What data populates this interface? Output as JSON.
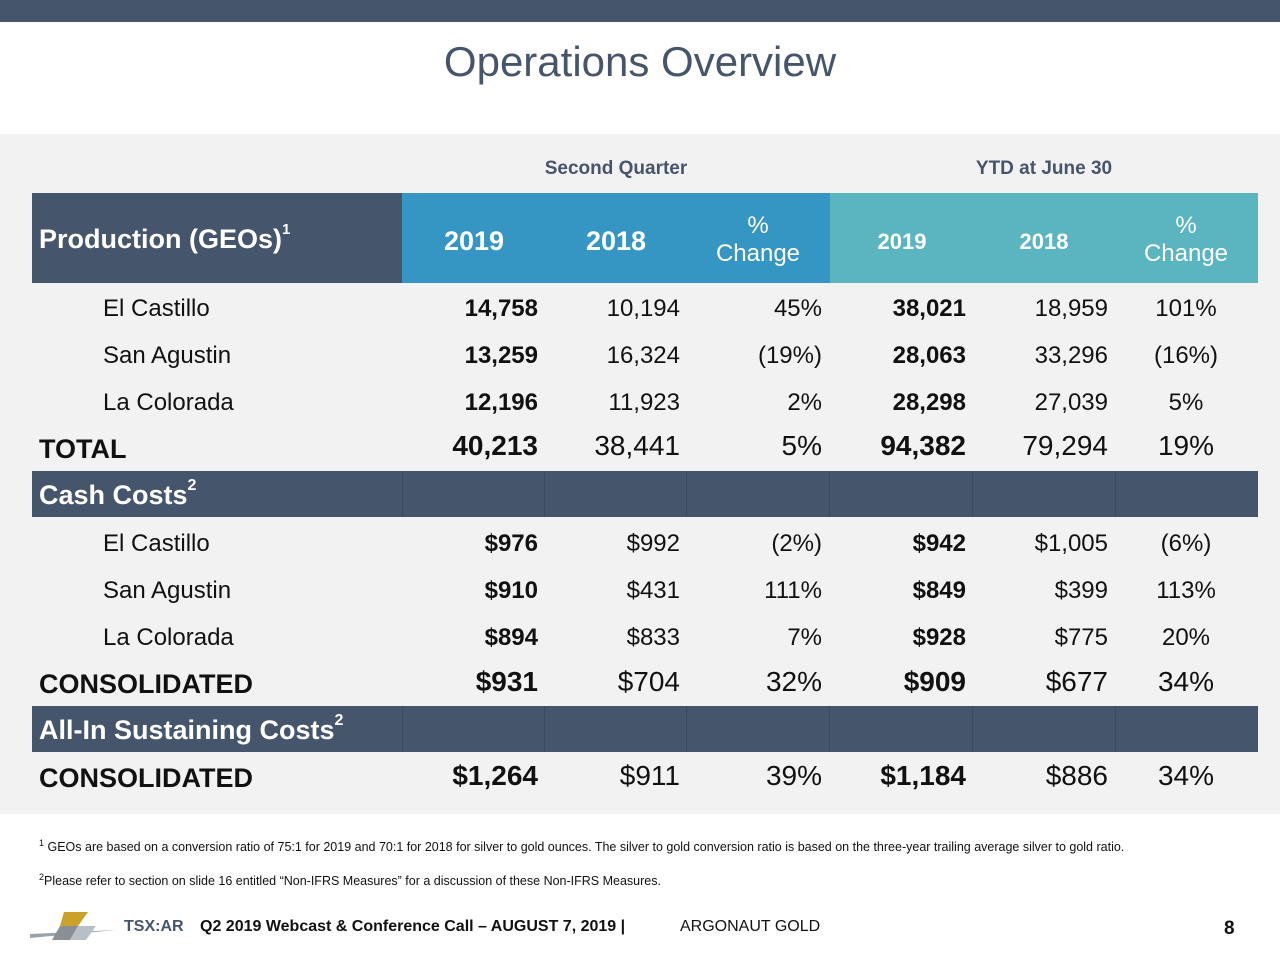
{
  "page": {
    "title": "Operations Overview"
  },
  "column_groups": {
    "second_quarter": "Second Quarter",
    "ytd": "YTD at June 30"
  },
  "header": {
    "production_label": "Production (GEOs)",
    "production_sup": "1",
    "q_2019": "2019",
    "q_2018": "2018",
    "q_pct_symbol": "%",
    "q_pct_word": "Change",
    "y_2019": "2019",
    "y_2018": "2018",
    "y_pct_symbol": "%",
    "y_pct_word": "Change"
  },
  "production_rows": [
    {
      "name": "El Castillo",
      "q2019": "14,758",
      "q2018": "10,194",
      "qchg": "45%",
      "y2019": "38,021",
      "y2018": "18,959",
      "ychg": "101%"
    },
    {
      "name": "San Agustin",
      "q2019": "13,259",
      "q2018": "16,324",
      "qchg": "(19%)",
      "y2019": "28,063",
      "y2018": "33,296",
      "ychg": "(16%)"
    },
    {
      "name": "La Colorada",
      "q2019": "12,196",
      "q2018": "11,923",
      "qchg": "2%",
      "y2019": "28,298",
      "y2018": "27,039",
      "ychg": "5%"
    }
  ],
  "production_total": {
    "name": "TOTAL",
    "q2019": "40,213",
    "q2018": "38,441",
    "qchg": "5%",
    "y2019": "94,382",
    "y2018": "79,294",
    "ychg": "19%"
  },
  "cash_costs": {
    "label": "Cash Costs",
    "sup": "2",
    "rows": [
      {
        "name": "El Castillo",
        "q2019": "$976",
        "q2018": "$992",
        "qchg": "(2%)",
        "y2019": "$942",
        "y2018": "$1,005",
        "ychg": "(6%)"
      },
      {
        "name": "San Agustin",
        "q2019": "$910",
        "q2018": "$431",
        "qchg": "111%",
        "y2019": "$849",
        "y2018": "$399",
        "ychg": "113%"
      },
      {
        "name": "La Colorada",
        "q2019": "$894",
        "q2018": "$833",
        "qchg": "7%",
        "y2019": "$928",
        "y2018": "$775",
        "ychg": "20%"
      }
    ],
    "total": {
      "name": "CONSOLIDATED",
      "q2019": "$931",
      "q2018": "$704",
      "qchg": "32%",
      "y2019": "$909",
      "y2018": "$677",
      "ychg": "34%"
    }
  },
  "aisc": {
    "label": "All-In Sustaining Costs",
    "sup": "2",
    "total": {
      "name": "CONSOLIDATED",
      "q2019": "$1,264",
      "q2018": "$911",
      "qchg": "39%",
      "y2019": "$1,184",
      "y2018": "$886",
      "ychg": "34%"
    }
  },
  "footnotes": {
    "f1_sup": "1",
    "f1_text": "GEOs are based on a conversion ratio of 75:1 for 2019 and 70:1 for 2018 for silver to gold ounces.  The silver to gold conversion ratio is based on the three-year trailing average silver to gold ratio.",
    "f2_sup": "2",
    "f2_text": "Please refer to section on slide 16 entitled “Non-IFRS Measures” for a discussion of these Non-IFRS Measures."
  },
  "footer": {
    "ticker": "TSX:AR",
    "event": "Q2 2019 Webcast & Conference Call – AUGUST 7, 2019 |",
    "company": "ARGONAUT GOLD",
    "page_number": "8"
  },
  "colors": {
    "navy": "#45556b",
    "blue": "#3596c4",
    "teal": "#5ab5c1",
    "panel": "#f2f2f2"
  }
}
